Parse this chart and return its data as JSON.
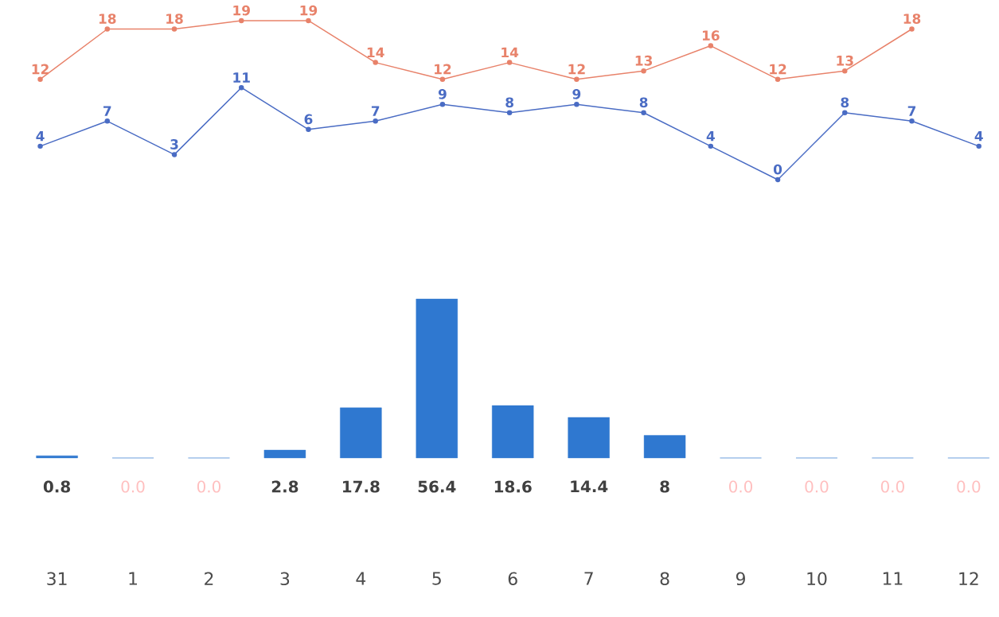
{
  "chart_data": [
    {
      "type": "line",
      "categories": [
        null,
        null,
        null,
        null,
        null,
        null,
        null,
        null,
        null,
        null,
        null,
        null,
        null,
        null,
        null
      ],
      "data_labels": true,
      "marker": "circle",
      "series": [
        {
          "color": "#e8826a",
          "values": [
            12,
            18,
            18,
            19,
            19,
            14,
            12,
            14,
            12,
            13,
            16,
            12,
            13,
            18,
            null
          ]
        },
        {
          "color": "#4a6cc4",
          "values": [
            4,
            7,
            3,
            11,
            6,
            7,
            9,
            8,
            9,
            8,
            4,
            0,
            8,
            7,
            4
          ]
        }
      ]
    },
    {
      "type": "bar",
      "categories": [
        "31",
        "1",
        "2",
        "3",
        "4",
        "5",
        "6",
        "7",
        "8",
        "9",
        "10",
        "11",
        "12"
      ],
      "color": "#2f78d0",
      "values": [
        0.8,
        0,
        0,
        2.8,
        17.8,
        56.4,
        18.6,
        14.4,
        8,
        0,
        0,
        0,
        0
      ],
      "value_labels": [
        "0.8",
        "0.0",
        "0.0",
        "2.8",
        "17.8",
        "56.4",
        "18.6",
        "14.4",
        "8",
        "0.0",
        "0.0",
        "0.0",
        "0.0"
      ]
    }
  ]
}
